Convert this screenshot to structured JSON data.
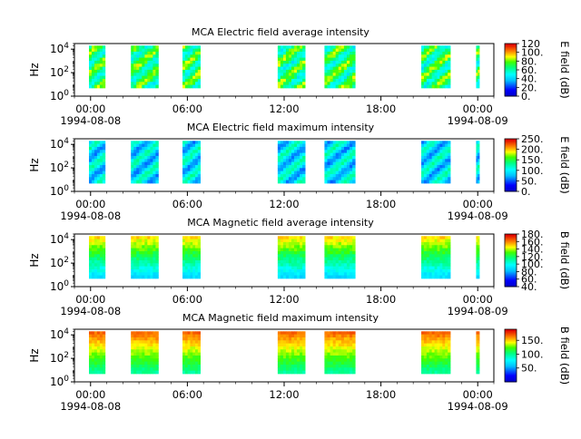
{
  "chart_data": [
    {
      "type": "heatmap",
      "title": "MCA  Electric field average intensity",
      "ylabel": "Hz",
      "yscale": "log",
      "ylim": [
        1,
        30000
      ],
      "y_ticks": [
        {
          "value": 1,
          "base": "10",
          "exp": "0"
        },
        {
          "value": 100,
          "base": "10",
          "exp": "2"
        },
        {
          "value": 10000,
          "base": "10",
          "exp": "4"
        }
      ],
      "xlim_hours": [
        -1,
        25
      ],
      "x_ticks": [
        {
          "hour": 0,
          "label": "00:00",
          "date": "1994-08-08"
        },
        {
          "hour": 6,
          "label": "06:00",
          "date": ""
        },
        {
          "hour": 12,
          "label": "12:00",
          "date": ""
        },
        {
          "hour": 18,
          "label": "18:00",
          "date": ""
        },
        {
          "hour": 24,
          "label": "00:00",
          "date": "1994-08-09"
        }
      ],
      "colorbar": {
        "label": "E field (dB)",
        "min": 0,
        "max": 120,
        "ticks": [
          "0.",
          "20.",
          "40.",
          "60.",
          "80.",
          "100.",
          "120"
        ]
      },
      "data_intervals_hours": [
        [
          -0.1,
          0.9
        ],
        [
          2.5,
          4.2
        ],
        [
          5.7,
          6.8
        ],
        [
          11.6,
          13.3
        ],
        [
          14.5,
          16.4
        ],
        [
          20.5,
          22.3
        ],
        [
          23.9,
          24.1
        ]
      ],
      "freq_range_hz": [
        5,
        20000
      ],
      "intensity_band": [
        50,
        85
      ]
    },
    {
      "type": "heatmap",
      "title": "MCA  Electric field maximum intensity",
      "ylabel": "Hz",
      "yscale": "log",
      "ylim": [
        1,
        30000
      ],
      "y_ticks": [
        {
          "value": 1,
          "base": "10",
          "exp": "0"
        },
        {
          "value": 100,
          "base": "10",
          "exp": "2"
        },
        {
          "value": 10000,
          "base": "10",
          "exp": "4"
        }
      ],
      "xlim_hours": [
        -1,
        25
      ],
      "x_ticks": [
        {
          "hour": 0,
          "label": "00:00",
          "date": "1994-08-08"
        },
        {
          "hour": 6,
          "label": "06:00",
          "date": ""
        },
        {
          "hour": 12,
          "label": "12:00",
          "date": ""
        },
        {
          "hour": 18,
          "label": "18:00",
          "date": ""
        },
        {
          "hour": 24,
          "label": "00:00",
          "date": "1994-08-09"
        }
      ],
      "colorbar": {
        "label": "E field (dB)",
        "min": 0,
        "max": 250,
        "ticks": [
          "0.",
          "50.",
          "100.",
          "150.",
          "200.",
          "250."
        ]
      },
      "data_intervals_hours": [
        [
          -0.1,
          0.9
        ],
        [
          2.5,
          4.2
        ],
        [
          5.7,
          6.8
        ],
        [
          11.6,
          13.3
        ],
        [
          14.5,
          16.4
        ],
        [
          20.5,
          22.3
        ],
        [
          23.9,
          24.1
        ]
      ],
      "freq_range_hz": [
        5,
        20000
      ],
      "intensity_band": [
        60,
        130
      ]
    },
    {
      "type": "heatmap",
      "title": "MCA  Magnetic field average intensity",
      "ylabel": "Hz",
      "yscale": "log",
      "ylim": [
        1,
        30000
      ],
      "y_ticks": [
        {
          "value": 1,
          "base": "10",
          "exp": "0"
        },
        {
          "value": 100,
          "base": "10",
          "exp": "2"
        },
        {
          "value": 10000,
          "base": "10",
          "exp": "4"
        }
      ],
      "xlim_hours": [
        -1,
        25
      ],
      "x_ticks": [
        {
          "hour": 0,
          "label": "00:00",
          "date": "1994-08-08"
        },
        {
          "hour": 6,
          "label": "06:00",
          "date": ""
        },
        {
          "hour": 12,
          "label": "12:00",
          "date": ""
        },
        {
          "hour": 18,
          "label": "18:00",
          "date": ""
        },
        {
          "hour": 24,
          "label": "00:00",
          "date": "1994-08-09"
        }
      ],
      "colorbar": {
        "label": "B field (dB)",
        "min": 40,
        "max": 180,
        "ticks": [
          "40.",
          "60.",
          "80.",
          "100.",
          "120.",
          "140.",
          "160.",
          "180."
        ]
      },
      "data_intervals_hours": [
        [
          -0.1,
          0.9
        ],
        [
          2.5,
          4.2
        ],
        [
          5.7,
          6.8
        ],
        [
          11.6,
          13.3
        ],
        [
          14.5,
          16.4
        ],
        [
          20.5,
          22.3
        ],
        [
          23.9,
          24.1
        ]
      ],
      "freq_range_hz": [
        5,
        20000
      ],
      "intensity_band": [
        90,
        150
      ]
    },
    {
      "type": "heatmap",
      "title": "MCA  Magnetic field maximum intensity",
      "ylabel": "Hz",
      "yscale": "log",
      "ylim": [
        1,
        30000
      ],
      "y_ticks": [
        {
          "value": 1,
          "base": "10",
          "exp": "0"
        },
        {
          "value": 100,
          "base": "10",
          "exp": "2"
        },
        {
          "value": 10000,
          "base": "10",
          "exp": "4"
        }
      ],
      "xlim_hours": [
        -1,
        25
      ],
      "x_ticks": [
        {
          "hour": 0,
          "label": "00:00",
          "date": "1994-08-08"
        },
        {
          "hour": 6,
          "label": "06:00",
          "date": ""
        },
        {
          "hour": 12,
          "label": "12:00",
          "date": ""
        },
        {
          "hour": 18,
          "label": "18:00",
          "date": ""
        },
        {
          "hour": 24,
          "label": "00:00",
          "date": "1994-08-09"
        }
      ],
      "colorbar": {
        "label": "B field (dB)",
        "min": 0,
        "max": 190,
        "ticks": [
          "50.",
          "100.",
          "150."
        ]
      },
      "data_intervals_hours": [
        [
          -0.1,
          0.9
        ],
        [
          2.5,
          4.2
        ],
        [
          5.7,
          6.8
        ],
        [
          11.6,
          13.3
        ],
        [
          14.5,
          16.4
        ],
        [
          20.5,
          22.3
        ],
        [
          23.9,
          24.1
        ]
      ],
      "freq_range_hz": [
        5,
        20000
      ],
      "intensity_band": [
        100,
        170
      ]
    }
  ]
}
